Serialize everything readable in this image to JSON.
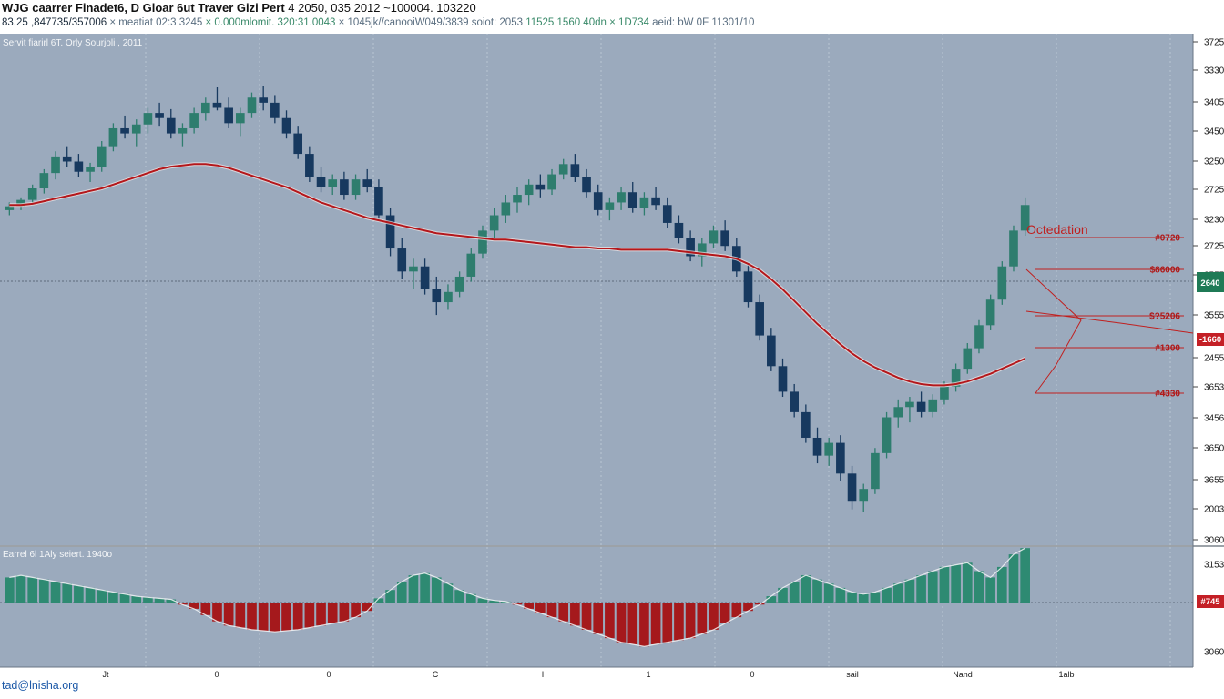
{
  "header": {
    "title": "WJG caarrer Finadet6, D Gloar 6ut Traver Gizi Pert",
    "title_values": "4 2050, 035 2012 ~100004. 103220",
    "stats_prefix": "83.25 ,847735/357006",
    "stats_items": [
      "× meatiat 02:3 3245",
      "× 0.000mlomit. 320:31.0043",
      "× 1045jk//canooiW049/3839",
      "soiot: 2053",
      "11525 1560 40dn",
      "× 1D734",
      "aeid: bW 0F",
      "11301/10"
    ]
  },
  "main_pane": {
    "title": "Servit fiarirl 6T. Orly Sourjoli , 2011"
  },
  "sub_pane": {
    "title": "Earrel 6l 1Aly seiert. 1940o"
  },
  "footer": {
    "source": "tad@lnisha.org"
  },
  "colors": {
    "background": "#9baabd",
    "bull": "#2e7d6e",
    "bear": "#17395f",
    "ma": "#b4171b",
    "hist_pos": "#2e8a72",
    "hist_neg": "#a5191c",
    "price_badge": "#1f7a56",
    "neg_badge": "#c42026"
  },
  "chart_data": {
    "type": "candlestick",
    "title": "Servit fiarirl 6T. Orly Sourjoli , 2011",
    "y_axis_labels": [
      "3725",
      "3330",
      "3405",
      "3450",
      "3250",
      "2725",
      "3230",
      "2725",
      "2555",
      "3555",
      "2455",
      "3653",
      "3456",
      "3650",
      "3655",
      "2003",
      "3060"
    ],
    "x_axis_labels": [
      "Jt",
      "0",
      "0",
      "C",
      "I",
      "1",
      "0",
      "sail",
      "Nand",
      "1alb"
    ],
    "price_badge": "2640",
    "series": [
      {
        "name": "price",
        "ohlc": [
          [
            262,
            268,
            258,
            265
          ],
          [
            265,
            272,
            262,
            270
          ],
          [
            270,
            282,
            266,
            279
          ],
          [
            279,
            294,
            275,
            291
          ],
          [
            291,
            308,
            286,
            304
          ],
          [
            304,
            312,
            296,
            300
          ],
          [
            300,
            306,
            288,
            292
          ],
          [
            292,
            299,
            284,
            296
          ],
          [
            296,
            316,
            292,
            312
          ],
          [
            312,
            330,
            308,
            326
          ],
          [
            326,
            336,
            318,
            322
          ],
          [
            322,
            333,
            312,
            329
          ],
          [
            329,
            342,
            322,
            338
          ],
          [
            338,
            346,
            328,
            334
          ],
          [
            334,
            341,
            318,
            322
          ],
          [
            322,
            330,
            312,
            326
          ],
          [
            326,
            342,
            322,
            338
          ],
          [
            338,
            350,
            332,
            346
          ],
          [
            346,
            358,
            340,
            342
          ],
          [
            342,
            350,
            326,
            330
          ],
          [
            330,
            342,
            320,
            338
          ],
          [
            338,
            354,
            334,
            350
          ],
          [
            350,
            359,
            340,
            346
          ],
          [
            346,
            352,
            330,
            334
          ],
          [
            334,
            340,
            318,
            322
          ],
          [
            322,
            328,
            302,
            306
          ],
          [
            306,
            312,
            284,
            288
          ],
          [
            288,
            296,
            276,
            280
          ],
          [
            280,
            290,
            274,
            286
          ],
          [
            286,
            292,
            270,
            274
          ],
          [
            274,
            290,
            270,
            286
          ],
          [
            286,
            294,
            276,
            280
          ],
          [
            280,
            286,
            254,
            258
          ],
          [
            258,
            264,
            226,
            232
          ],
          [
            232,
            240,
            208,
            214
          ],
          [
            214,
            224,
            200,
            218
          ],
          [
            218,
            224,
            196,
            200
          ],
          [
            200,
            210,
            180,
            190
          ],
          [
            190,
            204,
            184,
            198
          ],
          [
            198,
            214,
            194,
            210
          ],
          [
            210,
            232,
            206,
            228
          ],
          [
            228,
            250,
            224,
            246
          ],
          [
            246,
            264,
            240,
            258
          ],
          [
            258,
            274,
            252,
            268
          ],
          [
            268,
            280,
            260,
            274
          ],
          [
            274,
            286,
            266,
            282
          ],
          [
            282,
            290,
            272,
            278
          ],
          [
            278,
            294,
            274,
            290
          ],
          [
            290,
            302,
            286,
            298
          ],
          [
            298,
            306,
            284,
            288
          ],
          [
            288,
            294,
            272,
            276
          ],
          [
            276,
            282,
            258,
            262
          ],
          [
            262,
            272,
            254,
            268
          ],
          [
            268,
            280,
            262,
            276
          ],
          [
            276,
            284,
            260,
            264
          ],
          [
            264,
            276,
            258,
            272
          ],
          [
            272,
            280,
            262,
            266
          ],
          [
            266,
            272,
            248,
            252
          ],
          [
            252,
            258,
            236,
            240
          ],
          [
            240,
            246,
            222,
            226
          ],
          [
            226,
            240,
            218,
            236
          ],
          [
            236,
            250,
            232,
            246
          ],
          [
            246,
            254,
            230,
            234
          ],
          [
            234,
            240,
            210,
            214
          ],
          [
            214,
            220,
            186,
            190
          ],
          [
            190,
            196,
            160,
            164
          ],
          [
            164,
            170,
            136,
            140
          ],
          [
            140,
            146,
            116,
            120
          ],
          [
            120,
            126,
            100,
            104
          ],
          [
            104,
            110,
            80,
            84
          ],
          [
            84,
            92,
            64,
            70
          ],
          [
            70,
            84,
            62,
            80
          ],
          [
            80,
            86,
            50,
            56
          ],
          [
            56,
            62,
            28,
            34
          ],
          [
            34,
            48,
            26,
            44
          ],
          [
            44,
            76,
            40,
            72
          ],
          [
            72,
            104,
            68,
            100
          ],
          [
            100,
            114,
            92,
            108
          ],
          [
            108,
            116,
            96,
            112
          ],
          [
            112,
            120,
            100,
            104
          ],
          [
            104,
            118,
            100,
            114
          ],
          [
            114,
            128,
            110,
            124
          ],
          [
            124,
            142,
            120,
            138
          ],
          [
            138,
            158,
            134,
            154
          ],
          [
            154,
            176,
            150,
            172
          ],
          [
            172,
            196,
            168,
            192
          ],
          [
            192,
            222,
            188,
            218
          ],
          [
            218,
            250,
            214,
            246
          ],
          [
            246,
            272,
            242,
            266
          ]
        ]
      },
      {
        "name": "moving-average",
        "values": [
          266,
          266,
          267,
          269,
          271,
          273,
          275,
          277,
          279,
          282,
          285,
          288,
          291,
          294,
          296,
          297,
          298,
          298,
          297,
          295,
          292,
          289,
          286,
          283,
          280,
          276,
          272,
          268,
          265,
          262,
          259,
          256,
          254,
          252,
          250,
          248,
          246,
          244,
          243,
          242,
          241,
          240,
          239,
          239,
          238,
          237,
          236,
          235,
          234,
          233,
          233,
          232,
          232,
          231,
          231,
          231,
          231,
          231,
          230,
          229,
          228,
          227,
          226,
          224,
          220,
          215,
          208,
          200,
          191,
          182,
          173,
          165,
          157,
          150,
          144,
          139,
          135,
          131,
          128,
          126,
          125,
          125,
          126,
          128,
          131,
          134,
          138,
          142,
          146
        ]
      },
      {
        "name": "histogram",
        "values": [
          24,
          26,
          24,
          22,
          20,
          18,
          16,
          14,
          12,
          10,
          8,
          6,
          5,
          4,
          3,
          -2,
          -6,
          -12,
          -18,
          -22,
          -24,
          -26,
          -27,
          -28,
          -27,
          -26,
          -24,
          -22,
          -20,
          -18,
          -14,
          -8,
          4,
          12,
          20,
          26,
          28,
          24,
          18,
          12,
          8,
          4,
          2,
          1,
          -2,
          -6,
          -10,
          -14,
          -18,
          -22,
          -26,
          -30,
          -34,
          -38,
          -40,
          -42,
          -40,
          -38,
          -36,
          -34,
          -30,
          -26,
          -20,
          -14,
          -8,
          -2,
          6,
          14,
          20,
          26,
          22,
          18,
          14,
          10,
          8,
          10,
          14,
          18,
          22,
          26,
          30,
          34,
          36,
          38,
          30,
          24,
          34,
          46,
          52
        ]
      }
    ],
    "annotations": {
      "title": "Octedation",
      "levels": [
        {
          "label": "#0720"
        },
        {
          "label": "$86000"
        },
        {
          "label": "$?5206"
        },
        {
          "label": "#1300"
        },
        {
          "label": "#4330"
        }
      ],
      "neg_badge": "-1660",
      "sub_badge": "#745"
    }
  }
}
